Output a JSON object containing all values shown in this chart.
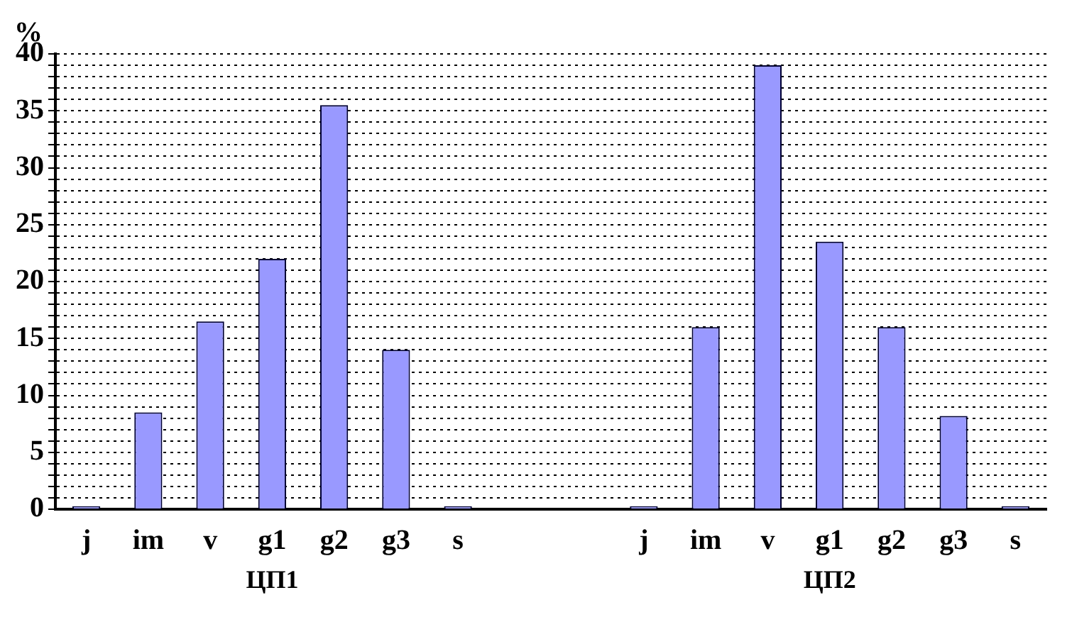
{
  "chart_data": {
    "type": "bar",
    "ylabel": "%",
    "categories": [
      "j",
      "im",
      "v",
      "g1",
      "g2",
      "g3",
      "s",
      null,
      null,
      "j",
      "im",
      "v",
      "g1",
      "g2",
      "g3",
      "s"
    ],
    "values": [
      0,
      8.5,
      16.5,
      22,
      35.5,
      14,
      0,
      null,
      null,
      0,
      16,
      39,
      23.5,
      16,
      8.2,
      0
    ],
    "color": "#9999ff",
    "annotations": [
      "ЦП1",
      "ЦП2"
    ],
    "ylim": [
      0,
      40
    ],
    "yticks": [
      0,
      {
        "value": 1,
        "label": null
      },
      {
        "value": 2,
        "label": null
      },
      {
        "value": 3,
        "label": null
      },
      {
        "value": 4,
        "label": null
      },
      5,
      {
        "value": 6,
        "label": null
      },
      {
        "value": 7,
        "label": null
      },
      {
        "value": 8,
        "label": null
      },
      {
        "value": 9,
        "label": null
      },
      10,
      {
        "value": 11,
        "label": null
      },
      {
        "value": 12,
        "label": null
      },
      {
        "value": 13,
        "label": null
      },
      {
        "value": 14,
        "label": null
      },
      15,
      {
        "value": 16,
        "label": null
      },
      {
        "value": 17,
        "label": null
      },
      {
        "value": 18,
        "label": null
      },
      {
        "value": 19,
        "label": null
      },
      20,
      {
        "value": 21,
        "label": null
      },
      {
        "value": 22,
        "label": null
      },
      {
        "value": 23,
        "label": null
      },
      {
        "value": 24,
        "label": null
      },
      25,
      {
        "value": 26,
        "label": null
      },
      {
        "value": 27,
        "label": null
      },
      {
        "value": 28,
        "label": null
      },
      {
        "value": 29,
        "label": null
      },
      30,
      {
        "value": 31,
        "label": null
      },
      {
        "value": 32,
        "label": null
      },
      {
        "value": 33,
        "label": null
      },
      {
        "value": 34,
        "label": null
      },
      35,
      {
        "value": 36,
        "label": null
      },
      {
        "value": 37,
        "label": null
      },
      {
        "value": 38,
        "label": null
      },
      {
        "value": 39,
        "label": null
      },
      40
    ],
    "grid": "y",
    "legend": false
  }
}
